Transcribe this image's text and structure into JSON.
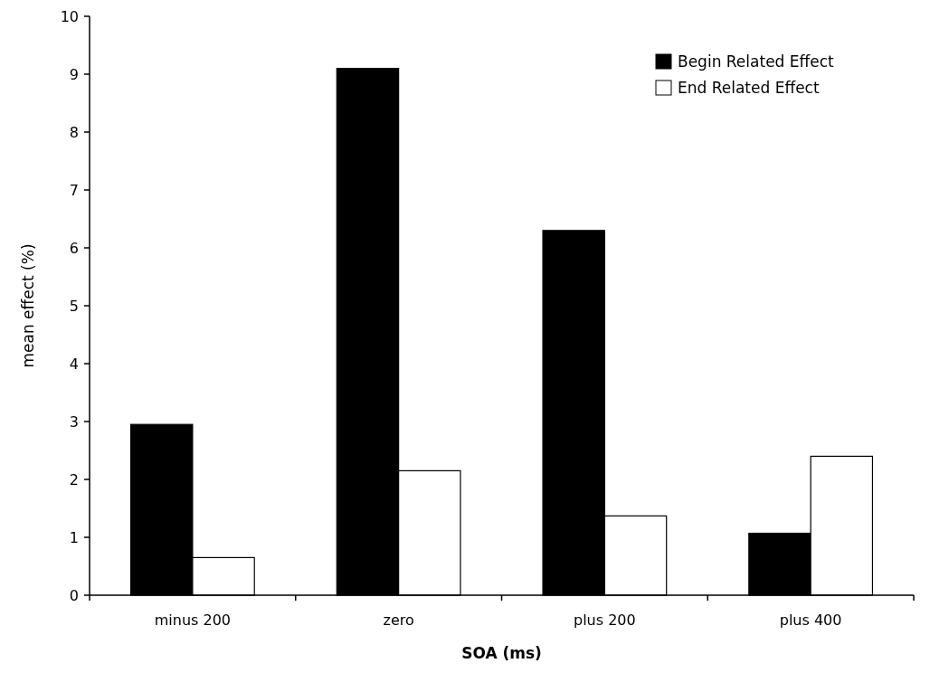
{
  "chart_data": {
    "type": "bar",
    "xlabel": "SOA (ms)",
    "ylabel": "mean effect (%)",
    "categories": [
      "minus 200",
      "zero",
      "plus 200",
      "plus 400"
    ],
    "series": [
      {
        "name": "Begin Related Effect",
        "color": "#000000",
        "values": [
          2.95,
          9.1,
          6.3,
          1.07
        ]
      },
      {
        "name": "End Related Effect",
        "color": "#ffffff",
        "values": [
          0.65,
          2.15,
          1.37,
          2.4
        ]
      }
    ],
    "ylim": [
      0,
      10
    ],
    "yticks": [
      0,
      1,
      2,
      3,
      4,
      5,
      6,
      7,
      8,
      9,
      10
    ],
    "legend": "top right"
  }
}
